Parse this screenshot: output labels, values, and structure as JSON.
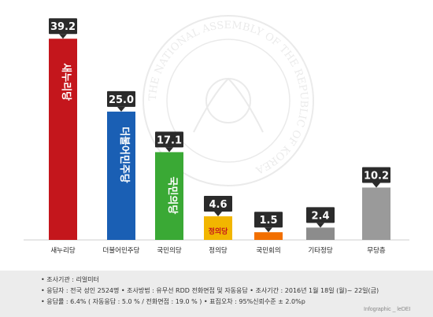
{
  "chart_data": {
    "type": "bar",
    "categories": [
      "새누리당",
      "더불어민주당",
      "국민의당",
      "정의당",
      "국민회의",
      "기타정당",
      "무당층"
    ],
    "values": [
      39.2,
      25.0,
      17.1,
      4.6,
      1.5,
      2.4,
      10.2
    ],
    "value_labels": [
      "39.2",
      "25.0",
      "17.1",
      "4.6",
      "1.5",
      "2.4",
      "10.2"
    ],
    "colors": [
      "#c4161c",
      "#1a5fb4",
      "#3aa935",
      "#f2b600",
      "#f26f00",
      "#8c8c8c",
      "#9a9a9a"
    ],
    "bar_logos": [
      "새누리당",
      "더불어민주당",
      "국민의당",
      "정의당",
      "",
      "",
      ""
    ],
    "ylim": [
      0,
      40
    ],
    "title": "",
    "xlabel": "",
    "ylabel": "",
    "grid": false
  },
  "watermark": "THE NATIONAL ASSEMBLY OF THE REPUBLIC OF KOREA",
  "footer": {
    "line1": "• 조사기관 : 리얼미터",
    "line2": "• 응답자 : 전국 성인 2524명  • 조사방법 : 유무선 RDD 전화면접 및 자동응답  • 조사기간 : 2016년 1월 18일 (월)~ 22일(금)",
    "line3": "• 응답률 : 6.4% ( 자동응답 : 5.0 % / 전화면접 : 19.0 % )  • 표집오차 : 95%신뢰수준 ± 2.0%p",
    "credit": "Infographic _ leDEI"
  }
}
